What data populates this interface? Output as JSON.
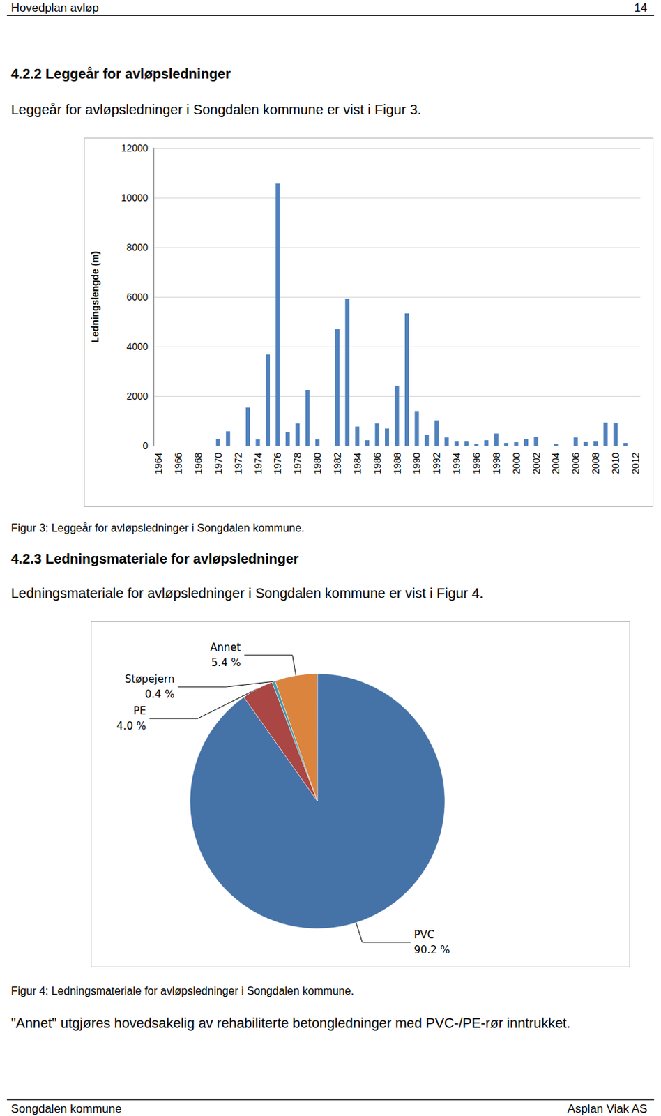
{
  "header": {
    "left": "Hovedplan avløp",
    "right": "14"
  },
  "sections": [
    {
      "heading": "4.2.2 Leggeår for avløpsledninger",
      "text": "Leggeår for avløpsledninger i Songdalen kommune er vist i Figur 3.",
      "caption": "Figur 3: Leggeår for avløpsledninger i Songdalen kommune."
    },
    {
      "heading": "4.2.3 Ledningsmateriale for avløpsledninger",
      "text": "Ledningsmateriale for avløpsledninger i Songdalen kommune er vist i Figur 4.",
      "caption": "Figur 4: Ledningsmateriale for avløpsledninger i Songdalen kommune.",
      "note": "\"Annet\" utgjøres hovedsakelig av rehabiliterte betongledninger med PVC-/PE-rør inntrukket."
    }
  ],
  "footer": {
    "left": "Songdalen kommune",
    "right": "Asplan Viak AS"
  },
  "chart_data": [
    {
      "type": "bar",
      "y_label": "Ledningslengde (m)",
      "categories": [
        1964,
        null,
        1966,
        null,
        1968,
        null,
        1970,
        null,
        1972,
        null,
        1974,
        null,
        1976,
        null,
        1978,
        null,
        1980,
        null,
        1982,
        null,
        1984,
        null,
        1986,
        null,
        1988,
        null,
        1990,
        null,
        1992,
        null,
        1994,
        null,
        1996,
        null,
        1998,
        null,
        2000,
        null,
        2002,
        null,
        2004,
        null,
        2006,
        null,
        2008,
        null,
        2010,
        null,
        2012
      ],
      "values": [
        0,
        0,
        0,
        0,
        0,
        0,
        275,
        580,
        0,
        1540,
        250,
        3680,
        10570,
        550,
        900,
        2250,
        250,
        0,
        4700,
        5930,
        770,
        220,
        900,
        690,
        2420,
        5330,
        1400,
        440,
        1020,
        330,
        190,
        190,
        80,
        220,
        490,
        110,
        140,
        270,
        360,
        0,
        80,
        0,
        330,
        170,
        190,
        930,
        910,
        110,
        0
      ],
      "color": "#4f81bd",
      "ylim": [
        0,
        12000
      ],
      "yticks": [
        0,
        2000,
        4000,
        6000,
        8000,
        10000,
        12000
      ],
      "grid": true
    },
    {
      "type": "pie",
      "categories": [
        "PVC",
        "PE",
        "Støpejern",
        "Annet"
      ],
      "values": [
        90.2,
        4.0,
        0.4,
        5.4
      ],
      "value_labels": [
        "90.2 %",
        "4.0 %",
        "0.4 %",
        "5.4 %"
      ],
      "colors": [
        "#4572a7",
        "#aa4643",
        "#4198af",
        "#db843d"
      ]
    }
  ]
}
